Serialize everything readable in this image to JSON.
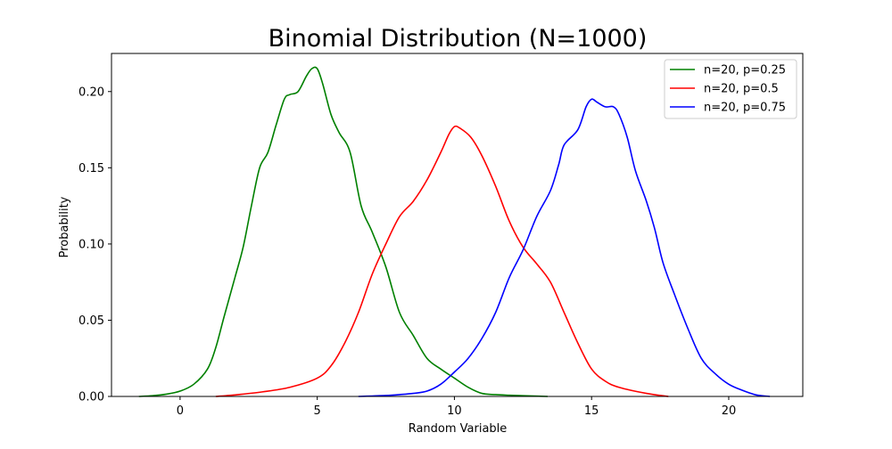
{
  "chart_data": {
    "type": "line",
    "title": "Binomial Distribution (N=1000)",
    "xlabel": "Random Variable",
    "ylabel": "Probability",
    "xlim": [
      -2.5,
      22.7
    ],
    "ylim": [
      0,
      0.225
    ],
    "xticks": [
      0,
      5,
      10,
      15,
      20
    ],
    "yticks": [
      0.0,
      0.05,
      0.1,
      0.15,
      0.2
    ],
    "xtick_labels": [
      "0",
      "5",
      "10",
      "15",
      "20"
    ],
    "ytick_labels": [
      "0.00",
      "0.05",
      "0.10",
      "0.15",
      "0.20"
    ],
    "grid": false,
    "legend_position": "top-right",
    "series": [
      {
        "name": "n=20, p=0.25",
        "color": "#008000",
        "x": [
          -1.5,
          -1.0,
          -0.5,
          0.0,
          0.5,
          1.0,
          1.3,
          1.6,
          2.0,
          2.3,
          2.6,
          2.9,
          3.2,
          3.5,
          3.8,
          4.0,
          4.3,
          4.6,
          4.8,
          5.0,
          5.2,
          5.5,
          5.8,
          6.2,
          6.6,
          7.0,
          7.5,
          8.0,
          8.5,
          9.0,
          9.5,
          10.0,
          10.5,
          11.0,
          11.5,
          12.0,
          12.5,
          13.4
        ],
        "y": [
          0.0,
          0.0005,
          0.0015,
          0.0035,
          0.008,
          0.018,
          0.032,
          0.052,
          0.078,
          0.098,
          0.125,
          0.15,
          0.16,
          0.178,
          0.195,
          0.198,
          0.2,
          0.21,
          0.215,
          0.215,
          0.205,
          0.185,
          0.173,
          0.16,
          0.125,
          0.108,
          0.085,
          0.055,
          0.04,
          0.025,
          0.018,
          0.012,
          0.006,
          0.002,
          0.0012,
          0.0008,
          0.0005,
          0.0
        ]
      },
      {
        "name": "n=20, p=0.5",
        "color": "#ff0000",
        "x": [
          1.3,
          2.0,
          3.0,
          4.0,
          5.0,
          5.5,
          6.0,
          6.5,
          7.0,
          7.5,
          8.0,
          8.5,
          9.0,
          9.5,
          9.8,
          10.0,
          10.2,
          10.6,
          11.0,
          11.5,
          12.0,
          12.5,
          13.0,
          13.5,
          14.0,
          14.5,
          15.0,
          15.5,
          16.0,
          17.0,
          17.8
        ],
        "y": [
          0.0,
          0.001,
          0.003,
          0.006,
          0.012,
          0.02,
          0.035,
          0.055,
          0.08,
          0.1,
          0.118,
          0.128,
          0.142,
          0.16,
          0.172,
          0.177,
          0.176,
          0.17,
          0.158,
          0.138,
          0.115,
          0.098,
          0.087,
          0.075,
          0.055,
          0.035,
          0.018,
          0.01,
          0.006,
          0.002,
          0.0
        ]
      },
      {
        "name": "n=20, p=0.75",
        "color": "#0000ff",
        "x": [
          6.5,
          7.0,
          7.5,
          8.0,
          8.5,
          9.0,
          9.5,
          10.0,
          10.5,
          11.0,
          11.5,
          12.0,
          12.5,
          13.0,
          13.5,
          13.8,
          14.0,
          14.5,
          14.8,
          15.0,
          15.2,
          15.5,
          15.8,
          16.0,
          16.3,
          16.6,
          17.0,
          17.3,
          17.6,
          18.0,
          18.5,
          19.0,
          19.5,
          20.0,
          20.5,
          21.0,
          21.5
        ],
        "y": [
          0.0,
          0.0003,
          0.0006,
          0.0012,
          0.002,
          0.0035,
          0.008,
          0.016,
          0.025,
          0.038,
          0.055,
          0.078,
          0.096,
          0.118,
          0.135,
          0.152,
          0.165,
          0.175,
          0.19,
          0.195,
          0.193,
          0.19,
          0.19,
          0.185,
          0.17,
          0.148,
          0.128,
          0.11,
          0.088,
          0.068,
          0.045,
          0.025,
          0.015,
          0.008,
          0.004,
          0.001,
          0.0
        ]
      }
    ]
  }
}
